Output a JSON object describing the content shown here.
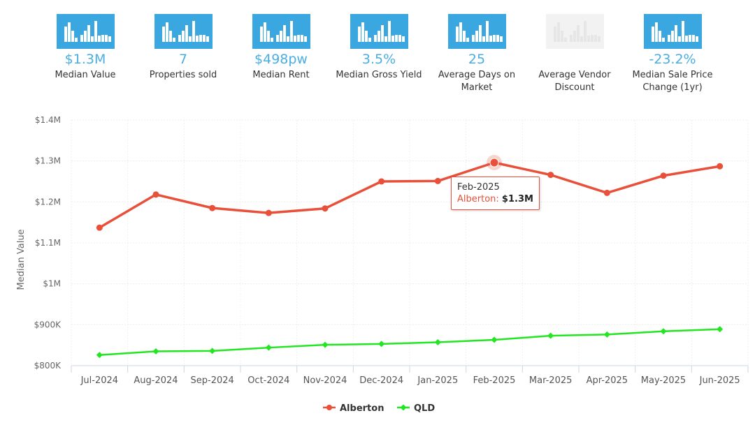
{
  "stats": [
    {
      "value": "$1.3M",
      "label": "Median Value",
      "disabled": false
    },
    {
      "value": "7",
      "label": "Properties sold",
      "disabled": false
    },
    {
      "value": "$498pw",
      "label": "Median Rent",
      "disabled": false
    },
    {
      "value": "3.5%",
      "label": "Median Gross Yield",
      "disabled": false
    },
    {
      "value": "25",
      "label": "Average Days on Market",
      "disabled": false
    },
    {
      "value": "",
      "label": "Average Vendor Discount",
      "disabled": true
    },
    {
      "value": "-23.2%",
      "label": "Median Sale Price Change (1yr)",
      "disabled": false
    }
  ],
  "icon_name": "bar-chart-icon",
  "colors": {
    "accent": "#3aa7e0",
    "alberton": "#e8503a",
    "qld": "#22e622"
  },
  "chart_data": {
    "type": "line",
    "categories": [
      "Jul-2024",
      "Aug-2024",
      "Sep-2024",
      "Oct-2024",
      "Nov-2024",
      "Dec-2024",
      "Jan-2025",
      "Feb-2025",
      "Mar-2025",
      "Apr-2025",
      "May-2025",
      "Jun-2025"
    ],
    "series": [
      {
        "name": "Alberton",
        "color": "#e8503a",
        "values": [
          1137000,
          1218000,
          1185000,
          1173000,
          1184000,
          1250000,
          1251000,
          1296000,
          1266000,
          1222000,
          1264000,
          1287000
        ]
      },
      {
        "name": "QLD",
        "color": "#22e622",
        "values": [
          826000,
          835000,
          836000,
          844000,
          851000,
          853000,
          857000,
          863000,
          873000,
          876000,
          884000,
          889000
        ]
      }
    ],
    "ylabel": "Median Value",
    "ylim": [
      800000,
      1400000
    ],
    "yticks": [
      800000,
      900000,
      1000000,
      1100000,
      1200000,
      1300000,
      1400000
    ],
    "ytick_labels": [
      "$800K",
      "$900K",
      "$1M",
      "$1.1M",
      "$1.2M",
      "$1.3M",
      "$1.4M"
    ],
    "grid": true,
    "legend_position": "bottom-center",
    "tooltip": {
      "category": "Feb-2025",
      "series": "Alberton",
      "value": "$1.3M",
      "separator": ":"
    }
  }
}
